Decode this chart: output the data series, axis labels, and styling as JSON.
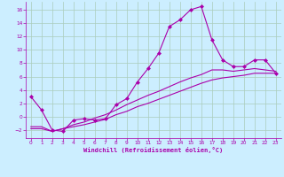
{
  "xlabel": "Windchill (Refroidissement éolien,°C)",
  "bg_color": "#cceeff",
  "grid_color": "#aaccbb",
  "line_color": "#aa00aa",
  "xlim": [
    -0.5,
    23.5
  ],
  "ylim": [
    -3.2,
    17.2
  ],
  "xticks": [
    0,
    1,
    2,
    3,
    4,
    5,
    6,
    7,
    8,
    9,
    10,
    11,
    12,
    13,
    14,
    15,
    16,
    17,
    18,
    19,
    20,
    21,
    22,
    23
  ],
  "yticks": [
    -2,
    0,
    2,
    4,
    6,
    8,
    10,
    12,
    14,
    16
  ],
  "series1_x": [
    0,
    1,
    2,
    3,
    4,
    5,
    6,
    7,
    8,
    9,
    10,
    11,
    12,
    13,
    14,
    15,
    16,
    17,
    18,
    19,
    20,
    21,
    22,
    23
  ],
  "series1_y": [
    3.0,
    1.0,
    -2.0,
    -2.2,
    -0.5,
    -0.3,
    -0.5,
    -0.3,
    1.8,
    2.7,
    5.2,
    7.2,
    9.5,
    13.5,
    14.5,
    16.0,
    16.5,
    11.5,
    8.5,
    7.5,
    7.5,
    8.5,
    8.5,
    6.5
  ],
  "series2_x": [
    0,
    1,
    2,
    3,
    4,
    5,
    6,
    7,
    8,
    9,
    10,
    11,
    12,
    13,
    14,
    15,
    16,
    17,
    18,
    19,
    20,
    21,
    22,
    23
  ],
  "series2_y": [
    -1.8,
    -1.8,
    -2.2,
    -1.8,
    -1.5,
    -1.2,
    -0.8,
    -0.4,
    0.3,
    0.8,
    1.5,
    2.0,
    2.6,
    3.2,
    3.8,
    4.4,
    5.0,
    5.5,
    5.8,
    6.0,
    6.2,
    6.5,
    6.5,
    6.5
  ],
  "series3_x": [
    0,
    1,
    2,
    3,
    4,
    5,
    6,
    7,
    8,
    9,
    10,
    11,
    12,
    13,
    14,
    15,
    16,
    17,
    18,
    19,
    20,
    21,
    22,
    23
  ],
  "series3_y": [
    -1.5,
    -1.5,
    -2.2,
    -1.8,
    -1.2,
    -0.8,
    -0.2,
    0.3,
    1.0,
    1.8,
    2.5,
    3.2,
    3.8,
    4.5,
    5.2,
    5.8,
    6.3,
    7.0,
    7.0,
    6.8,
    7.0,
    7.2,
    7.0,
    6.8
  ]
}
